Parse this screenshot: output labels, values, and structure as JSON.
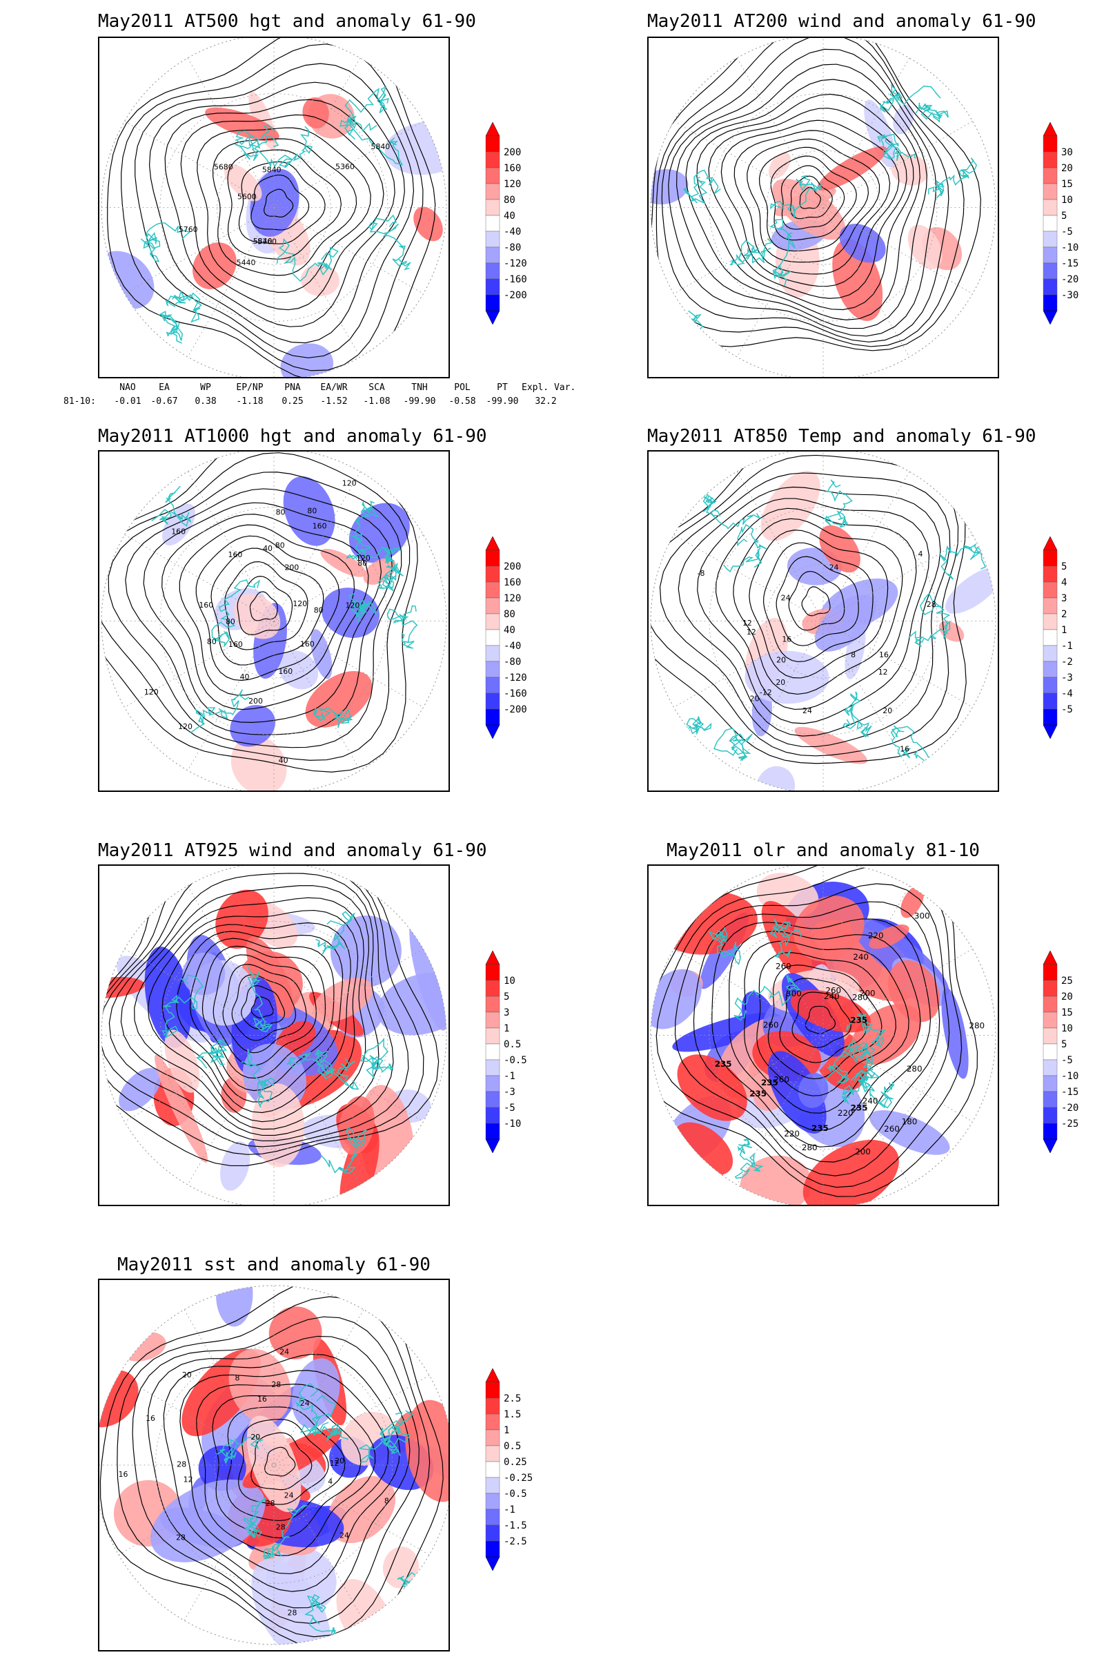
{
  "panels": [
    {
      "id": "at500",
      "title": "May2011 AT500 hgt and anomaly 61-90",
      "colorbar": [
        "200",
        "160",
        "120",
        "80",
        "40",
        "-40",
        "-80",
        "-120",
        "-160",
        "-200"
      ],
      "contour_labels": [
        "5840",
        "5840",
        "5360",
        "5440",
        "5600",
        "5760",
        "5680",
        "5760",
        "5840"
      ]
    },
    {
      "id": "at200",
      "title": "May2011 AT200 wind and anomaly 61-90",
      "colorbar": [
        "30",
        "20",
        "15",
        "10",
        "5",
        "-5",
        "-10",
        "-15",
        "-20",
        "-30"
      ],
      "contour_labels": []
    },
    {
      "id": "at1000",
      "title": "May2011 AT1000 hgt and anomaly 61-90",
      "colorbar": [
        "200",
        "160",
        "120",
        "80",
        "40",
        "-40",
        "-80",
        "-120",
        "-160",
        "-200"
      ],
      "contour_labels": [
        "120",
        "80",
        "160",
        "120",
        "200",
        "160",
        "120",
        "80",
        "40",
        "80",
        "120",
        "160",
        "120",
        "200",
        "160",
        "160",
        "40",
        "120",
        "80",
        "160",
        "80",
        "80",
        "40",
        "80",
        "160"
      ]
    },
    {
      "id": "at850",
      "title": "May2011 AT850 Temp and anomaly 61-90",
      "colorbar": [
        "5",
        "4",
        "3",
        "2",
        "1",
        "-1",
        "-2",
        "-3",
        "-4",
        "-5"
      ],
      "contour_labels": [
        "16",
        "12",
        "20",
        "16",
        "20",
        "-12",
        "-8",
        "8",
        "12",
        "4",
        "24",
        "28",
        "12",
        "16",
        "24",
        "24",
        "20",
        "20"
      ]
    },
    {
      "id": "at925",
      "title": "May2011 AT925 wind and anomaly 61-90",
      "colorbar": [
        "10",
        "5",
        "3",
        "1",
        "0.5",
        "-0.5",
        "-1",
        "-3",
        "-5",
        "-10"
      ],
      "contour_labels": []
    },
    {
      "id": "olr",
      "title": "May2011 olr and anomaly 81-10",
      "colorbar": [
        "25",
        "20",
        "15",
        "10",
        "5",
        "-5",
        "-10",
        "-15",
        "-20",
        "-25"
      ],
      "contour_labels": [
        "235",
        "260",
        "200",
        "240",
        "260",
        "240",
        "220",
        "280",
        "260",
        "220",
        "235",
        "280",
        "200",
        "300",
        "220",
        "260",
        "180",
        "235",
        "280",
        "240",
        "235",
        "300",
        "280",
        "260",
        "235",
        "235"
      ]
    },
    {
      "id": "sst",
      "title": "May2011 sst and anomaly 61-90",
      "colorbar": [
        "2.5",
        "1.5",
        "1",
        "0.5",
        "0.25",
        "-0.25",
        "-0.5",
        "-1",
        "-1.5",
        "-2.5"
      ],
      "contour_labels": [
        "28",
        "24",
        "24",
        "20",
        "16",
        "12",
        "8",
        "4",
        "28",
        "24",
        "20",
        "16",
        "12",
        "8",
        "28",
        "28",
        "16",
        "20",
        "24",
        "28",
        "28"
      ]
    }
  ],
  "teleconnection": {
    "headers": [
      "NAO",
      "EA",
      "WP",
      "EP/NP",
      "PNA",
      "EA/WR",
      "SCA",
      "TNH",
      "POL",
      "PT",
      "Expl. Var."
    ],
    "row_label": "81-10:",
    "values": [
      "-0.01",
      "-0.67",
      "0.38",
      "-1.18",
      "0.25",
      "-1.52",
      "-1.08",
      "-99.90",
      "-0.58",
      "-99.90",
      "32.2"
    ]
  },
  "colors": {
    "positive": [
      "#ff0000",
      "#ff3c3c",
      "#ff7070",
      "#ffa4a4",
      "#ffd2d2"
    ],
    "negative": [
      "#d2d2ff",
      "#a4a4ff",
      "#7070ff",
      "#3c3cff",
      "#0000ff"
    ],
    "coast": "#2ec4c4",
    "contour": "#000000"
  }
}
